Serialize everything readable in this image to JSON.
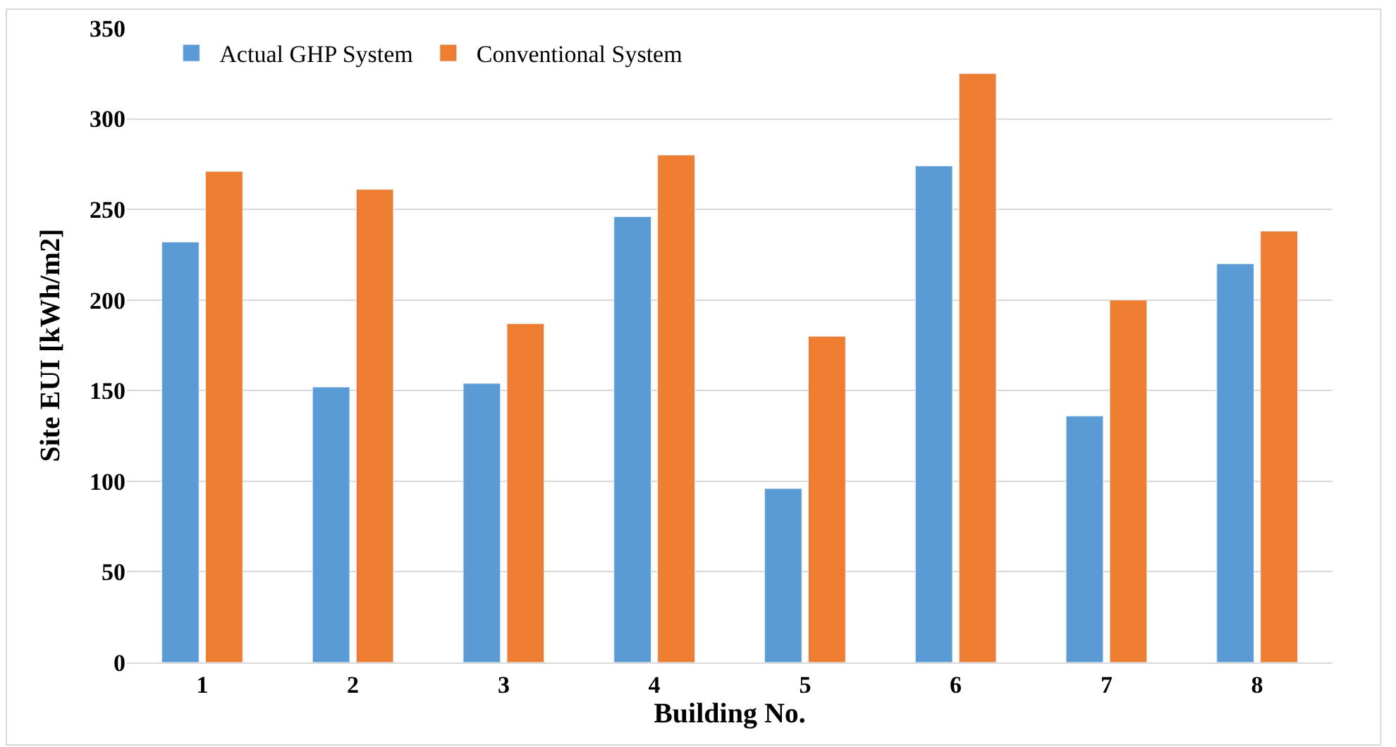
{
  "chart_data": {
    "type": "bar",
    "xlabel": "Building No.",
    "ylabel": "Site EUI [kWh/m2]",
    "categories": [
      "1",
      "2",
      "3",
      "4",
      "5",
      "6",
      "7",
      "8"
    ],
    "series": [
      {
        "name": "Actual GHP System",
        "color": "#5b9bd5",
        "values": [
          232,
          152,
          154,
          246,
          96,
          274,
          136,
          220
        ]
      },
      {
        "name": "Conventional System",
        "color": "#ed7d31",
        "values": [
          271,
          261,
          187,
          280,
          180,
          325,
          200,
          238
        ]
      }
    ],
    "ylim": [
      0,
      350
    ],
    "yticks": [
      0,
      50,
      100,
      150,
      200,
      250,
      300,
      350
    ],
    "grid": "y",
    "legend": "top left"
  }
}
